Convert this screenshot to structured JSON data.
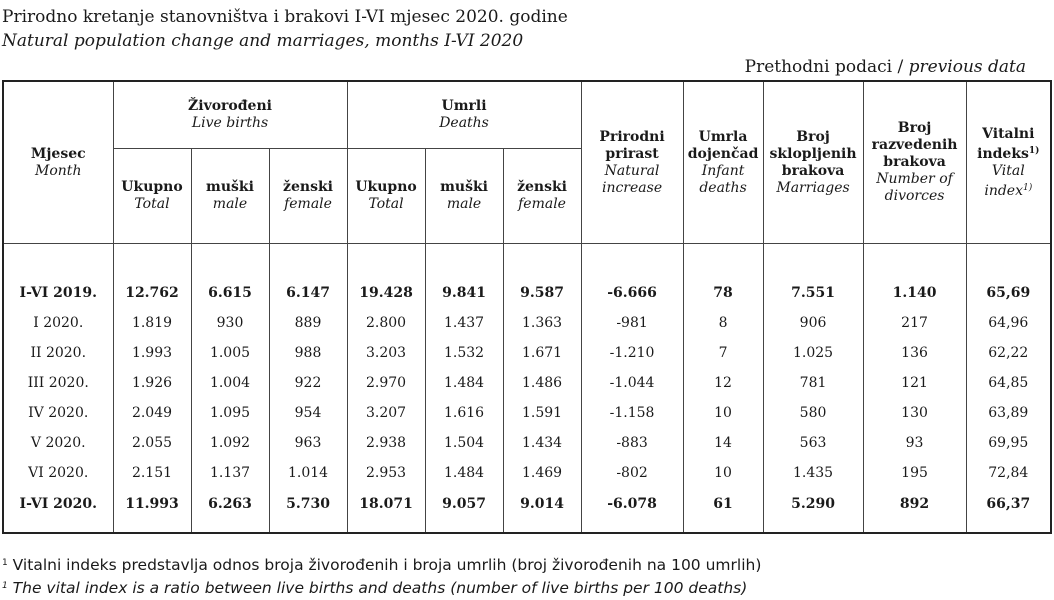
{
  "title": {
    "local": "Prirodno kretanje stanovništva i brakovi I-VI mjesec 2020. godine",
    "english": "Natural population change and marriages, months I-VI 2020"
  },
  "preliminary": {
    "local": "Prethodni podaci /",
    "english": "previous data"
  },
  "headers": {
    "month": {
      "local": "Mjesec",
      "english": "Month"
    },
    "live_births": {
      "local": "Živorođeni",
      "english": "Live births"
    },
    "deaths": {
      "local": "Umrli",
      "english": "Deaths"
    },
    "total": {
      "local": "Ukupno",
      "english": "Total"
    },
    "male": {
      "local": "muški",
      "english": "male"
    },
    "female": {
      "local": "ženski",
      "english": "female"
    },
    "natural_increase": {
      "local": "Prirodni prirast",
      "english": "Natural increase"
    },
    "infant_deaths": {
      "local": "Umrla dojenčad",
      "english": "Infant deaths"
    },
    "marriages": {
      "local": "Broj sklopljenih brakova",
      "english": "Marriages"
    },
    "divorces": {
      "local": "Broj razvedenih brakova",
      "english": "Number of divorces"
    },
    "vital_index": {
      "local": "Vitalni indeks",
      "english": "Vital index",
      "sup": "1)"
    }
  },
  "rows": [
    {
      "month": "I-VI 2019.",
      "bold": true,
      "v": [
        "12.762",
        "6.615",
        "6.147",
        "19.428",
        "9.841",
        "9.587",
        "-6.666",
        "78",
        "7.551",
        "1.140",
        "65,69"
      ]
    },
    {
      "month": "I 2020.",
      "bold": false,
      "v": [
        "1.819",
        "930",
        "889",
        "2.800",
        "1.437",
        "1.363",
        "-981",
        "8",
        "906",
        "217",
        "64,96"
      ]
    },
    {
      "month": "II 2020.",
      "bold": false,
      "v": [
        "1.993",
        "1.005",
        "988",
        "3.203",
        "1.532",
        "1.671",
        "-1.210",
        "7",
        "1.025",
        "136",
        "62,22"
      ]
    },
    {
      "month": "III 2020.",
      "bold": false,
      "v": [
        "1.926",
        "1.004",
        "922",
        "2.970",
        "1.484",
        "1.486",
        "-1.044",
        "12",
        "781",
        "121",
        "64,85"
      ]
    },
    {
      "month": "IV 2020.",
      "bold": false,
      "v": [
        "2.049",
        "1.095",
        "954",
        "3.207",
        "1.616",
        "1.591",
        "-1.158",
        "10",
        "580",
        "130",
        "63,89"
      ]
    },
    {
      "month": "V 2020.",
      "bold": false,
      "v": [
        "2.055",
        "1.092",
        "963",
        "2.938",
        "1.504",
        "1.434",
        "-883",
        "14",
        "563",
        "93",
        "69,95"
      ]
    },
    {
      "month": "VI 2020.",
      "bold": false,
      "v": [
        "2.151",
        "1.137",
        "1.014",
        "2.953",
        "1.484",
        "1.469",
        "-802",
        "10",
        "1.435",
        "195",
        "72,84"
      ]
    },
    {
      "month": "I-VI 2020.",
      "bold": true,
      "v": [
        "11.993",
        "6.263",
        "5.730",
        "18.071",
        "9.057",
        "9.014",
        "-6.078",
        "61",
        "5.290",
        "892",
        "66,37"
      ]
    }
  ],
  "footnotes": {
    "sup": "1",
    "local": "Vitalni indeks predstavlja odnos broja živorođenih i broja umrlih (broj živorođenih na 100 umrlih)",
    "english": "The vital index is a ratio between live births and deaths (number of live births per 100 deaths)"
  }
}
